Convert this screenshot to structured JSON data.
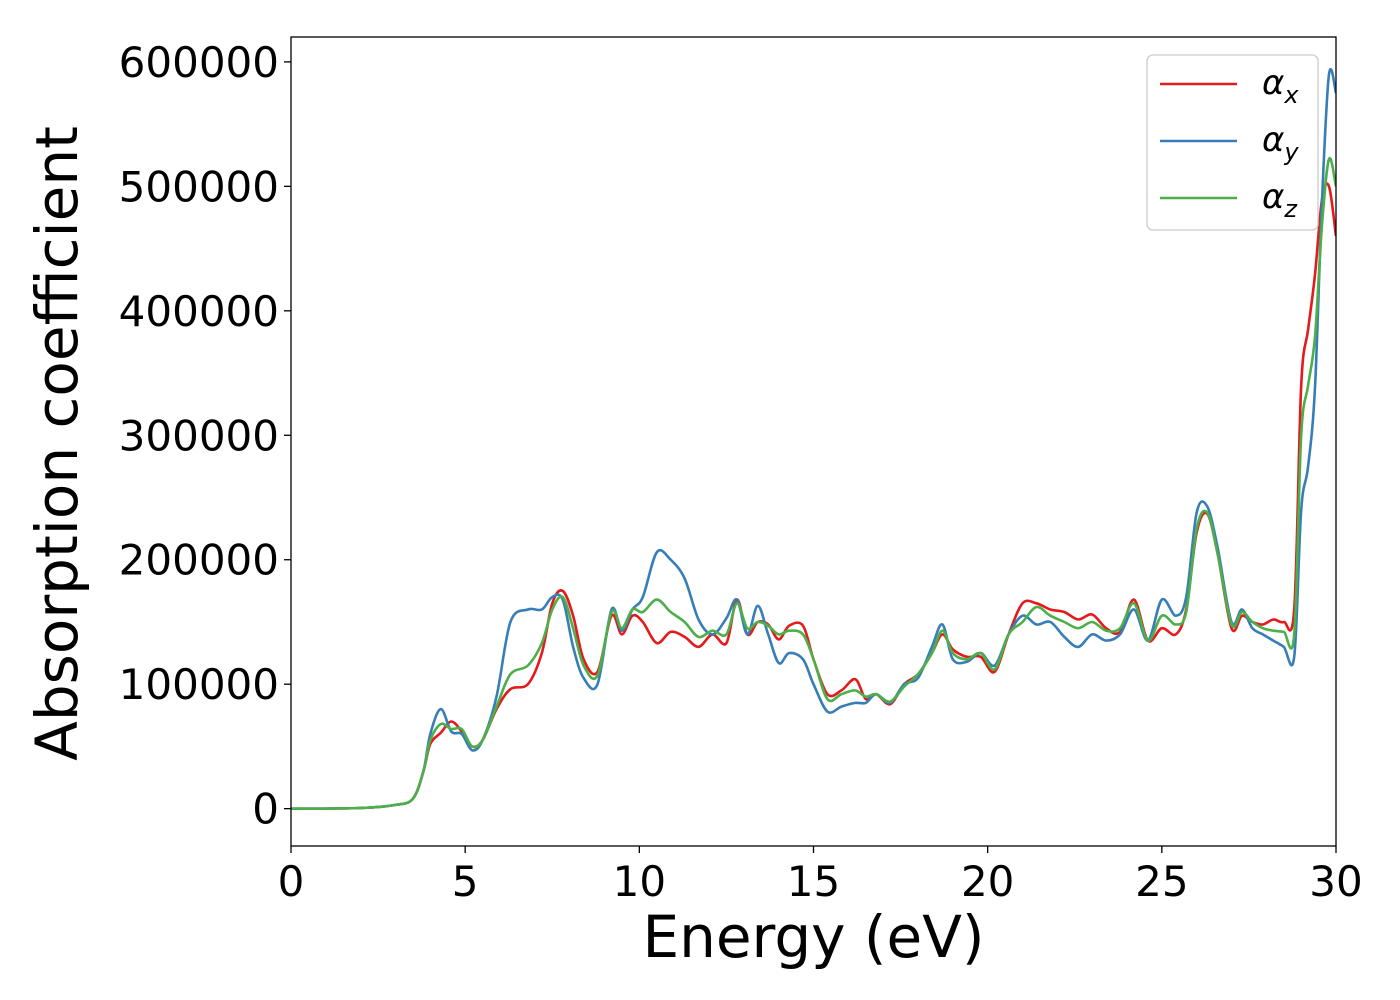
{
  "chart_data": {
    "type": "line",
    "title": "",
    "xlabel": "Energy (eV)",
    "ylabel": "Absorption coefficient",
    "xlim": [
      0,
      30
    ],
    "ylim": [
      -30000,
      620000
    ],
    "x_ticks": [
      "0",
      "5",
      "10",
      "15",
      "20",
      "25",
      "30"
    ],
    "y_ticks": [
      "0",
      "100000",
      "200000",
      "300000",
      "400000",
      "500000",
      "600000"
    ],
    "grid": false,
    "legend_position": "top-right",
    "series": [
      {
        "name": "α",
        "name_subscript": "x",
        "color": "#e41a1c",
        "x": [
          0,
          2.0,
          3.0,
          3.5,
          3.8,
          4.0,
          4.3,
          4.6,
          4.9,
          5.2,
          5.5,
          5.9,
          6.3,
          6.8,
          7.2,
          7.5,
          7.8,
          8.1,
          8.4,
          8.8,
          9.2,
          9.5,
          9.8,
          10.1,
          10.5,
          10.9,
          11.3,
          11.7,
          12.1,
          12.5,
          12.8,
          13.1,
          13.4,
          13.7,
          14.0,
          14.3,
          14.7,
          15.0,
          15.4,
          15.8,
          16.2,
          16.5,
          16.8,
          17.2,
          17.6,
          18.0,
          18.4,
          18.7,
          19.0,
          19.4,
          19.8,
          20.2,
          20.6,
          21.0,
          21.4,
          21.8,
          22.2,
          22.6,
          23.0,
          23.4,
          23.8,
          24.2,
          24.6,
          25.0,
          25.4,
          25.7,
          26.0,
          26.3,
          26.6,
          27.0,
          27.3,
          27.6,
          27.9,
          28.2,
          28.5,
          28.8,
          29.0,
          29.2,
          29.4,
          29.6,
          29.8,
          30.0
        ],
        "y": [
          0,
          500,
          3000,
          8000,
          30000,
          52000,
          61000,
          70000,
          62000,
          50000,
          55000,
          80000,
          96000,
          100000,
          125000,
          165000,
          175000,
          155000,
          120000,
          110000,
          155000,
          140000,
          155000,
          150000,
          133000,
          142000,
          138000,
          130000,
          140000,
          133000,
          168000,
          140000,
          150000,
          148000,
          136000,
          147000,
          147000,
          120000,
          92000,
          95000,
          104000,
          88000,
          92000,
          84000,
          100000,
          108000,
          125000,
          140000,
          128000,
          122000,
          122000,
          110000,
          140000,
          165000,
          165000,
          160000,
          158000,
          152000,
          156000,
          145000,
          142000,
          168000,
          135000,
          145000,
          140000,
          160000,
          222000,
          237000,
          205000,
          145000,
          155000,
          150000,
          148000,
          152000,
          150000,
          160000,
          340000,
          385000,
          430000,
          490000,
          500000,
          460000
        ]
      },
      {
        "name": "α",
        "name_subscript": "y",
        "color": "#377eb8",
        "x": [
          0,
          2.0,
          3.0,
          3.5,
          3.8,
          4.0,
          4.3,
          4.6,
          4.9,
          5.2,
          5.5,
          5.9,
          6.3,
          6.8,
          7.2,
          7.5,
          7.8,
          8.1,
          8.4,
          8.8,
          9.2,
          9.5,
          9.8,
          10.1,
          10.5,
          10.9,
          11.3,
          11.7,
          12.1,
          12.5,
          12.8,
          13.1,
          13.4,
          13.7,
          14.0,
          14.3,
          14.7,
          15.0,
          15.4,
          15.8,
          16.2,
          16.5,
          16.8,
          17.2,
          17.6,
          18.0,
          18.4,
          18.7,
          19.0,
          19.4,
          19.8,
          20.2,
          20.6,
          21.0,
          21.4,
          21.8,
          22.2,
          22.6,
          23.0,
          23.4,
          23.8,
          24.2,
          24.6,
          25.0,
          25.4,
          25.7,
          26.0,
          26.3,
          26.6,
          27.0,
          27.3,
          27.6,
          27.9,
          28.2,
          28.5,
          28.8,
          29.0,
          29.2,
          29.4,
          29.6,
          29.8,
          30.0
        ],
        "y": [
          0,
          500,
          3000,
          8000,
          30000,
          60000,
          80000,
          62000,
          60000,
          47000,
          55000,
          90000,
          150000,
          160000,
          160000,
          170000,
          168000,
          130000,
          105000,
          100000,
          160000,
          143000,
          160000,
          170000,
          206000,
          200000,
          185000,
          152000,
          140000,
          153000,
          168000,
          140000,
          163000,
          140000,
          117000,
          125000,
          120000,
          100000,
          78000,
          82000,
          85000,
          85000,
          92000,
          85000,
          100000,
          105000,
          130000,
          148000,
          120000,
          118000,
          125000,
          115000,
          140000,
          155000,
          148000,
          150000,
          138000,
          130000,
          140000,
          135000,
          140000,
          160000,
          135000,
          168000,
          155000,
          170000,
          238000,
          243000,
          210000,
          150000,
          160000,
          145000,
          140000,
          135000,
          130000,
          122000,
          240000,
          275000,
          340000,
          490000,
          590000,
          575000
        ]
      },
      {
        "name": "α",
        "name_subscript": "z",
        "color": "#4daf4a",
        "x": [
          0,
          2.0,
          3.0,
          3.5,
          3.8,
          4.0,
          4.3,
          4.6,
          4.9,
          5.2,
          5.5,
          5.9,
          6.3,
          6.8,
          7.2,
          7.5,
          7.8,
          8.1,
          8.4,
          8.8,
          9.2,
          9.5,
          9.8,
          10.1,
          10.5,
          10.9,
          11.3,
          11.7,
          12.1,
          12.5,
          12.8,
          13.1,
          13.4,
          13.7,
          14.0,
          14.3,
          14.7,
          15.0,
          15.4,
          15.8,
          16.2,
          16.5,
          16.8,
          17.2,
          17.6,
          18.0,
          18.4,
          18.7,
          19.0,
          19.4,
          19.8,
          20.2,
          20.6,
          21.0,
          21.4,
          21.8,
          22.2,
          22.6,
          23.0,
          23.4,
          23.8,
          24.2,
          24.6,
          25.0,
          25.4,
          25.7,
          26.0,
          26.3,
          26.6,
          27.0,
          27.3,
          27.6,
          27.9,
          28.2,
          28.5,
          28.8,
          29.0,
          29.2,
          29.4,
          29.6,
          29.8,
          30.0
        ],
        "y": [
          0,
          500,
          3000,
          8000,
          30000,
          55000,
          68000,
          64000,
          64000,
          50000,
          55000,
          82000,
          108000,
          115000,
          133000,
          160000,
          170000,
          145000,
          115000,
          107000,
          158000,
          145000,
          160000,
          158000,
          168000,
          158000,
          150000,
          138000,
          143000,
          140000,
          165000,
          145000,
          150000,
          147000,
          140000,
          143000,
          140000,
          120000,
          88000,
          92000,
          95000,
          90000,
          92000,
          86000,
          98000,
          108000,
          125000,
          143000,
          125000,
          120000,
          125000,
          112000,
          140000,
          150000,
          162000,
          155000,
          150000,
          145000,
          150000,
          143000,
          145000,
          165000,
          135000,
          155000,
          148000,
          158000,
          225000,
          238000,
          205000,
          148000,
          158000,
          150000,
          145000,
          143000,
          142000,
          140000,
          300000,
          340000,
          380000,
          470000,
          522000,
          500000
        ]
      }
    ]
  }
}
